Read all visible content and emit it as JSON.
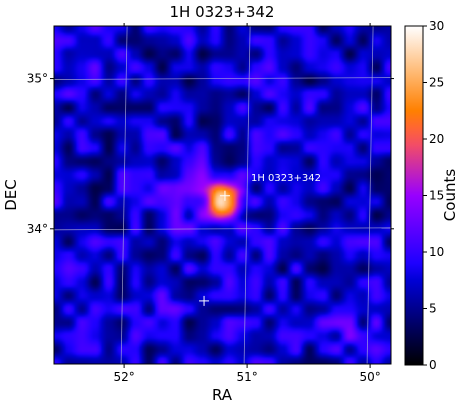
{
  "chart_data": {
    "type": "heatmap",
    "title": "1H 0323+342",
    "xlabel": "RA",
    "ylabel": "DEC",
    "colorbar_label": "Counts",
    "colormap": "gnuplot2",
    "x_axis": {
      "direction": "decreasing",
      "range": [
        52.57,
        49.83
      ],
      "ticks": [
        52,
        51,
        50
      ],
      "tick_labels": [
        "52°",
        "51°",
        "50°"
      ]
    },
    "y_axis": {
      "range": [
        33.1,
        35.35
      ],
      "ticks": [
        34,
        35
      ],
      "tick_labels": [
        "34°",
        "35°"
      ]
    },
    "colorbar": {
      "range": [
        0,
        30
      ],
      "ticks": [
        0,
        5,
        10,
        15,
        20,
        25,
        30
      ],
      "tick_labels": [
        "0",
        "5",
        "10",
        "15",
        "20",
        "25",
        "30"
      ]
    },
    "grid": true,
    "background_level": 7,
    "peaks": [
      {
        "ra": 51.17,
        "dec": 34.18,
        "counts": 28
      },
      {
        "ra": 51.45,
        "dec": 34.3,
        "counts": 13
      },
      {
        "ra": 51.38,
        "dec": 34.05,
        "counts": 12
      },
      {
        "ra": 51.78,
        "dec": 33.56,
        "counts": 11
      },
      {
        "ra": 52.4,
        "dec": 35.05,
        "counts": 10
      },
      {
        "ra": 50.15,
        "dec": 33.3,
        "counts": 11
      },
      {
        "ra": 52.3,
        "dec": 33.82,
        "counts": 9
      }
    ],
    "markers": [
      {
        "ra": 51.18,
        "dec": 34.22,
        "symbol": "+"
      },
      {
        "ra": 51.35,
        "dec": 33.52,
        "symbol": "+"
      }
    ],
    "annotations": [
      {
        "text": "1H 0323+342",
        "ra": 51.18,
        "dec": 34.22
      }
    ]
  }
}
